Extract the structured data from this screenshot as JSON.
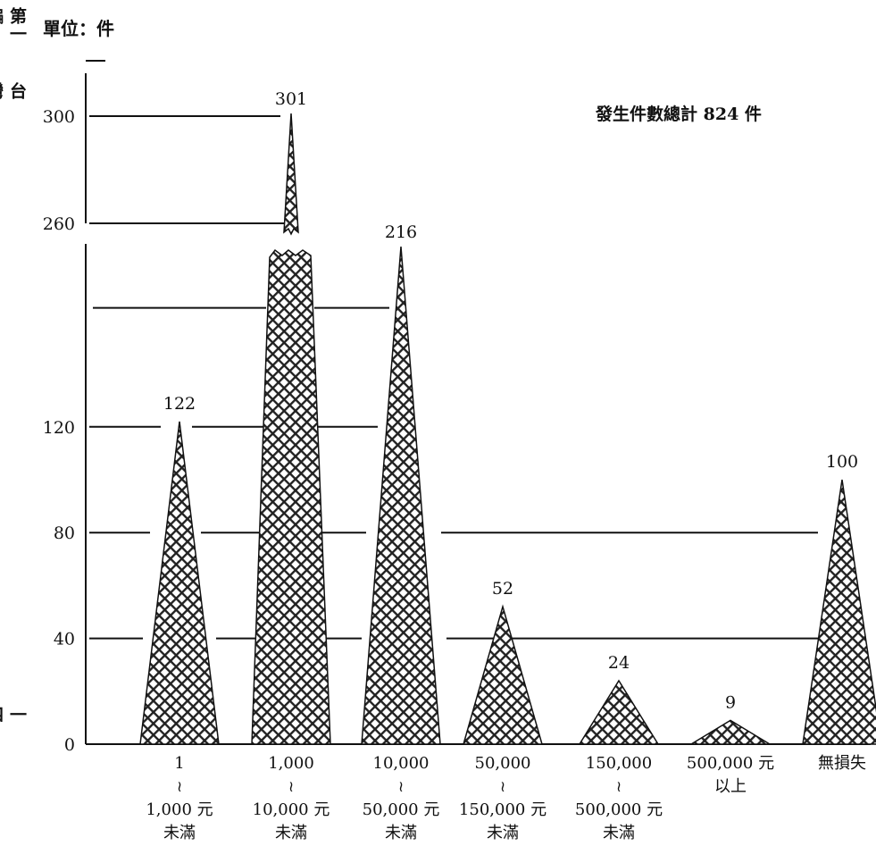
{
  "page": {
    "side_chapter": "第一編",
    "side_book_title": "台灣地區十年來之犯罪狀況及其趨勢",
    "side_page_number": "一四一"
  },
  "chart_data": {
    "type": "bar",
    "unit_label": "單位：件",
    "total_note": "發生件數總計 824 件",
    "categories": [
      {
        "lines": [
          "1",
          "≀",
          "1,000 元",
          "未滿"
        ]
      },
      {
        "lines": [
          "1,000",
          "≀",
          "10,000 元",
          "未滿"
        ]
      },
      {
        "lines": [
          "10,000",
          "≀",
          "50,000 元",
          "未滿"
        ]
      },
      {
        "lines": [
          "50,000",
          "≀",
          "150,000 元",
          "未滿"
        ]
      },
      {
        "lines": [
          "150,000",
          "≀",
          "500,000 元",
          "未滿"
        ]
      },
      {
        "lines": [
          "500,000 元",
          "以上"
        ]
      },
      {
        "lines": [
          "無損失"
        ]
      }
    ],
    "values": [
      122,
      301,
      216,
      52,
      24,
      9,
      100
    ],
    "data_labels": [
      "122",
      "301",
      "216",
      "52",
      "24",
      "9",
      "100"
    ],
    "y_ticks": [
      {
        "value": 0,
        "label": "0"
      },
      {
        "value": 40,
        "label": "40"
      },
      {
        "value": 80,
        "label": "80"
      },
      {
        "value": 120,
        "label": "120"
      },
      {
        "value": 260,
        "label": "260"
      },
      {
        "value": 300,
        "label": "300"
      }
    ],
    "ylim": [
      0,
      320
    ],
    "axis_break": [
      200,
      260
    ],
    "bar_shape": "triangle",
    "fill_pattern": "crosshatch",
    "grid": true,
    "colors": {
      "ink": "#111111",
      "background": "#ffffff"
    }
  }
}
